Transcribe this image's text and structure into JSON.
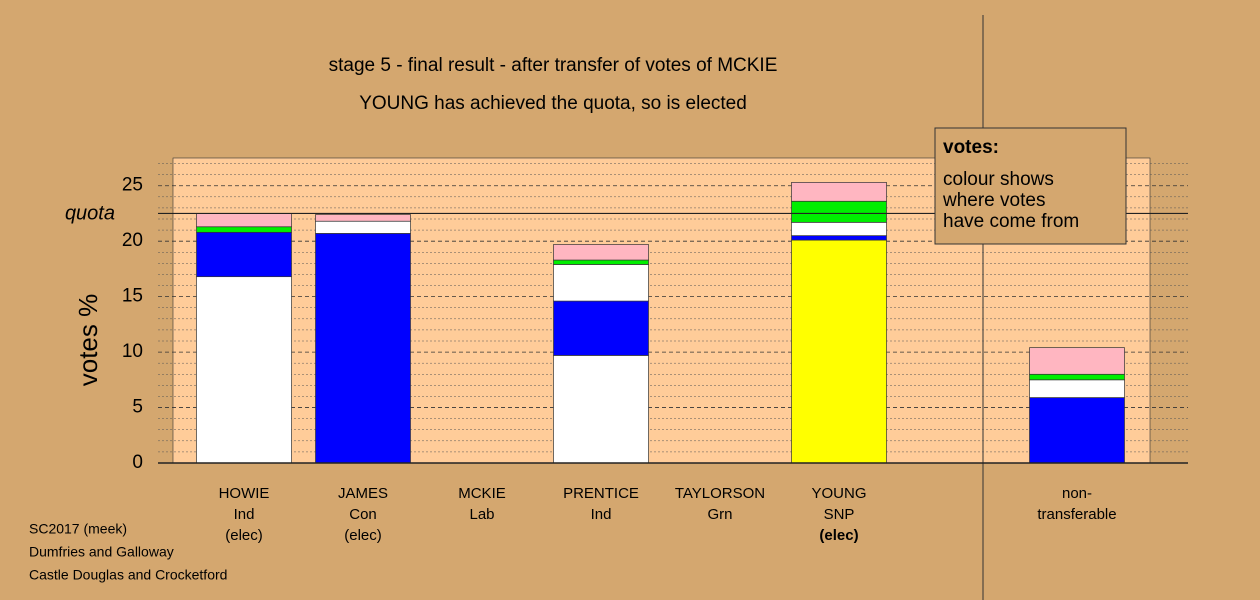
{
  "chart_data": {
    "type": "stacked-bar",
    "title": "stage 5 - final result - after transfer of votes of MCKIE",
    "subtitle": "YOUNG has achieved the quota, so is elected",
    "ylabel": "votes %",
    "ylim": [
      0,
      27.5
    ],
    "yticks": [
      0,
      5,
      10,
      15,
      20,
      25
    ],
    "minor_yticks": [
      1,
      2,
      3,
      4,
      6,
      7,
      8,
      9,
      11,
      12,
      13,
      14,
      16,
      17,
      18,
      19,
      21,
      22,
      23,
      24,
      26,
      27
    ],
    "grid": true,
    "quota": 22.5,
    "quota_label": "quota",
    "categories": [
      [
        "HOWIE",
        "Ind",
        "(elec)"
      ],
      [
        "JAMES",
        "Con",
        "(elec)"
      ],
      [
        "MCKIE",
        "Lab"
      ],
      [
        "PRENTICE",
        "Ind"
      ],
      [
        "TAYLORSON",
        "Grn"
      ],
      [
        "YOUNG",
        "SNP",
        "(elec)"
      ],
      null,
      [
        "non-",
        "transferable"
      ]
    ],
    "highlight": 5,
    "segments": [
      [
        {
          "color": "#ffffff",
          "value": 16.8
        },
        {
          "color": "#0000ff",
          "value": 4.0
        },
        {
          "color": "#00ee00",
          "value": 0.5
        },
        {
          "color": "#ffb6c1",
          "value": 1.2
        }
      ],
      [
        {
          "color": "#0000ff",
          "value": 20.7
        },
        {
          "color": "#ffffff",
          "value": 1.1
        },
        {
          "color": "#ffb6c1",
          "value": 0.6
        }
      ],
      [],
      [
        {
          "color": "#ffffff",
          "value": 9.7
        },
        {
          "color": "#0000ff",
          "value": 4.9
        },
        {
          "color": "#ffffff",
          "value": 3.3
        },
        {
          "color": "#00ee00",
          "value": 0.4
        },
        {
          "color": "#ffb6c1",
          "value": 1.4
        }
      ],
      [],
      [
        {
          "color": "#ffff00",
          "value": 20.1
        },
        {
          "color": "#0000ff",
          "value": 0.4
        },
        {
          "color": "#ffffff",
          "value": 1.2
        },
        {
          "color": "#00ee00",
          "value": 1.9
        },
        {
          "color": "#ffb6c1",
          "value": 1.7
        }
      ],
      null,
      [
        {
          "color": "#0000ff",
          "value": 5.9
        },
        {
          "color": "#ffffff",
          "value": 1.6
        },
        {
          "color": "#00ee00",
          "value": 0.5
        },
        {
          "color": "#ffb6c1",
          "value": 2.4
        }
      ]
    ],
    "info_box": {
      "title": "votes:",
      "lines": [
        "colour shows",
        "where votes",
        "have come from"
      ]
    },
    "footer": [
      "SC2017 (meek)",
      "Dumfries and Galloway",
      "Castle Douglas and Crocketford"
    ]
  }
}
